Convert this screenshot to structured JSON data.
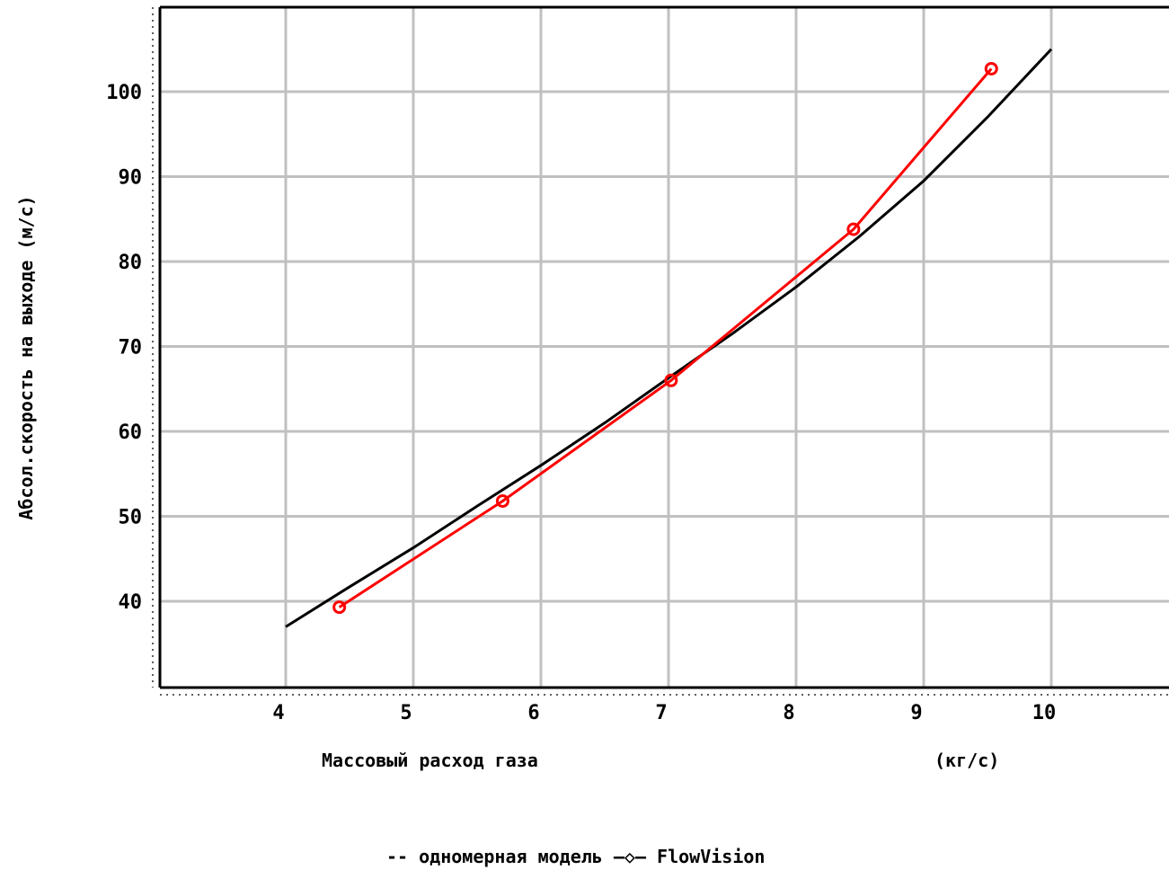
{
  "chart_data": {
    "type": "line",
    "xlabel": "Массовый расход газа",
    "xunit": "(кг/с)",
    "ylabel": "Абсол.скорость на выходе (м/с)",
    "xlim": [
      3,
      11
    ],
    "ylim": [
      30,
      110
    ],
    "x_ticks": [
      "4",
      "5",
      "6",
      "7",
      "8",
      "9",
      "10"
    ],
    "y_ticks": [
      "40",
      "50",
      "60",
      "70",
      "80",
      "90",
      "100"
    ],
    "x_tick_values": [
      4,
      5,
      6,
      7,
      8,
      9,
      10
    ],
    "y_tick_values": [
      40,
      50,
      60,
      70,
      80,
      90,
      100
    ],
    "grid": true,
    "legend": {
      "position": "bottom",
      "text": "-- одномерная модель –◇– FlowVision"
    },
    "series": [
      {
        "name": "одномерная модель",
        "color": "#000000",
        "marker": "none",
        "x": [
          4.0,
          4.5,
          5.0,
          5.5,
          6.0,
          6.5,
          7.0,
          7.5,
          8.0,
          8.5,
          9.0,
          9.5,
          10.0
        ],
        "y": [
          37.0,
          41.7,
          46.3,
          51.2,
          56.0,
          61.0,
          66.3,
          71.5,
          77.0,
          83.0,
          89.5,
          97.0,
          105.0
        ]
      },
      {
        "name": "FlowVision",
        "color": "#ff0000",
        "marker": "diamond",
        "x": [
          4.42,
          5.7,
          7.02,
          8.45,
          9.53
        ],
        "y": [
          39.3,
          51.8,
          66.0,
          83.8,
          102.7
        ]
      }
    ]
  }
}
